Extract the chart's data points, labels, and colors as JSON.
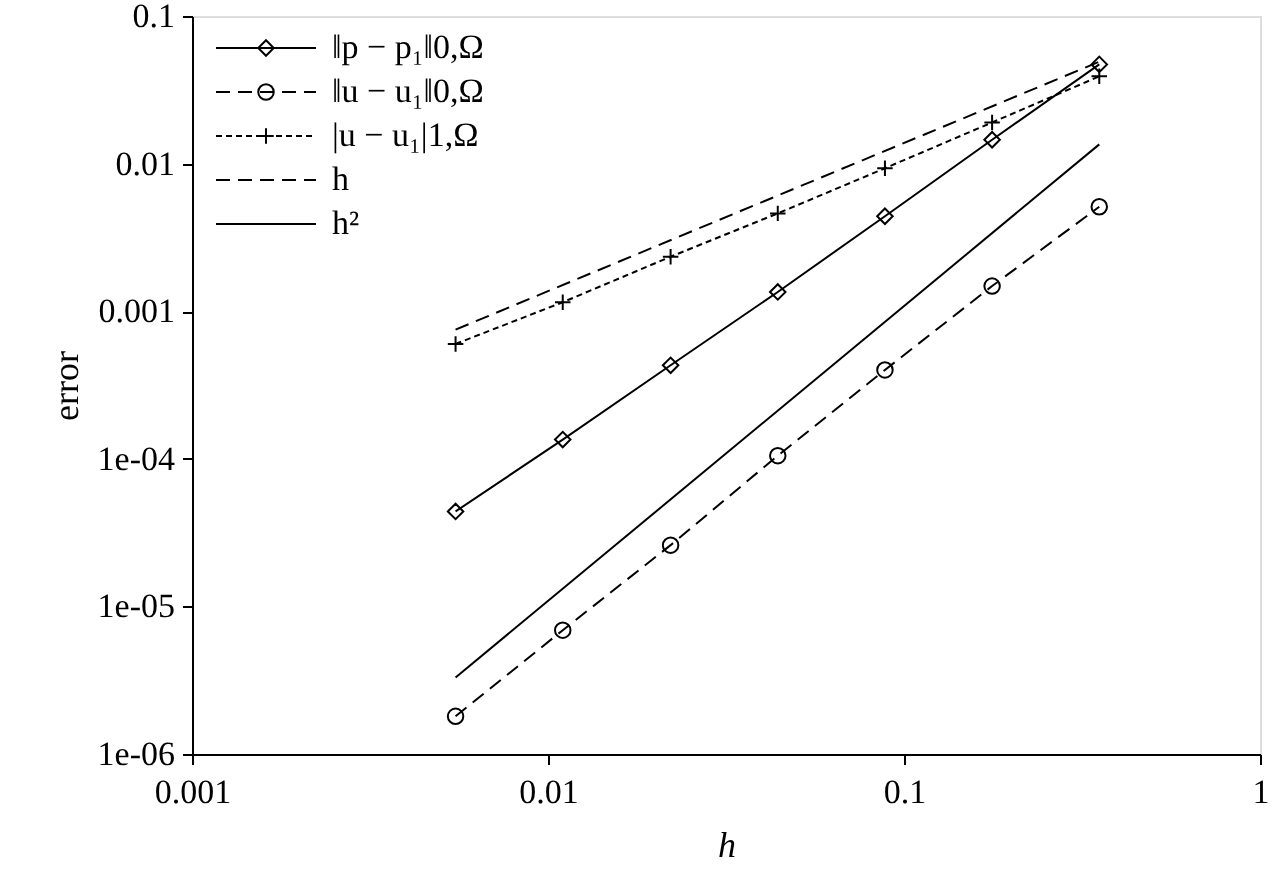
{
  "chart_data": {
    "type": "line",
    "xlabel": "h",
    "ylabel": "error",
    "log": "xy",
    "grid": false,
    "legend": "top left",
    "xlim": [
      0.001,
      1
    ],
    "xticks": [
      0.001,
      0.01,
      0.1,
      1
    ],
    "ylim": [
      1e-06,
      0.1
    ],
    "yticks": [
      {
        "value": 1e-06,
        "label": "1e-06"
      },
      {
        "value": 1e-05,
        "label": "1e-05"
      },
      {
        "value": 0.0001,
        "label": "1e-04"
      },
      0.001,
      0.01,
      0.1
    ],
    "series": [
      {
        "name": "‖p − p₁‖0,Ω",
        "color": "#000000",
        "marker": "diamond",
        "line_style": "solid",
        "x": [
          0.0055,
          0.011,
          0.0221,
          0.0442,
          0.0884,
          0.1768,
          0.3536
        ],
        "values": [
          4.4e-05,
          0.000135,
          0.00043,
          0.00135,
          0.0044,
          0.0145,
          0.047
        ]
      },
      {
        "name": "‖u − u₁‖0,Ω",
        "color": "#000000",
        "marker": "circle",
        "line_style": "dashed",
        "x": [
          0.0055,
          0.011,
          0.0221,
          0.0442,
          0.0884,
          0.1768,
          0.3536
        ],
        "values": [
          1.8e-06,
          6.9e-06,
          2.6e-05,
          0.000105,
          0.0004,
          0.00148,
          0.0051
        ]
      },
      {
        "name": "|u − u₁|1,Ω",
        "color": "#000000",
        "marker": "cross",
        "line_style": "dotted",
        "x": [
          0.0055,
          0.011,
          0.0221,
          0.0442,
          0.0884,
          0.1768,
          0.3536
        ],
        "values": [
          0.0006,
          0.00115,
          0.00234,
          0.0046,
          0.0093,
          0.019,
          0.039
        ]
      },
      {
        "name": "h",
        "color": "#000000",
        "marker": "none",
        "line_style": "dashed",
        "x": [
          0.0055,
          0.3536
        ],
        "values": [
          0.00075,
          0.049
        ]
      },
      {
        "name": "h²",
        "color": "#000000",
        "marker": "none",
        "line_style": "solid",
        "x": [
          0.0055,
          0.3536
        ],
        "values": [
          3.3e-06,
          0.0135
        ]
      }
    ]
  }
}
